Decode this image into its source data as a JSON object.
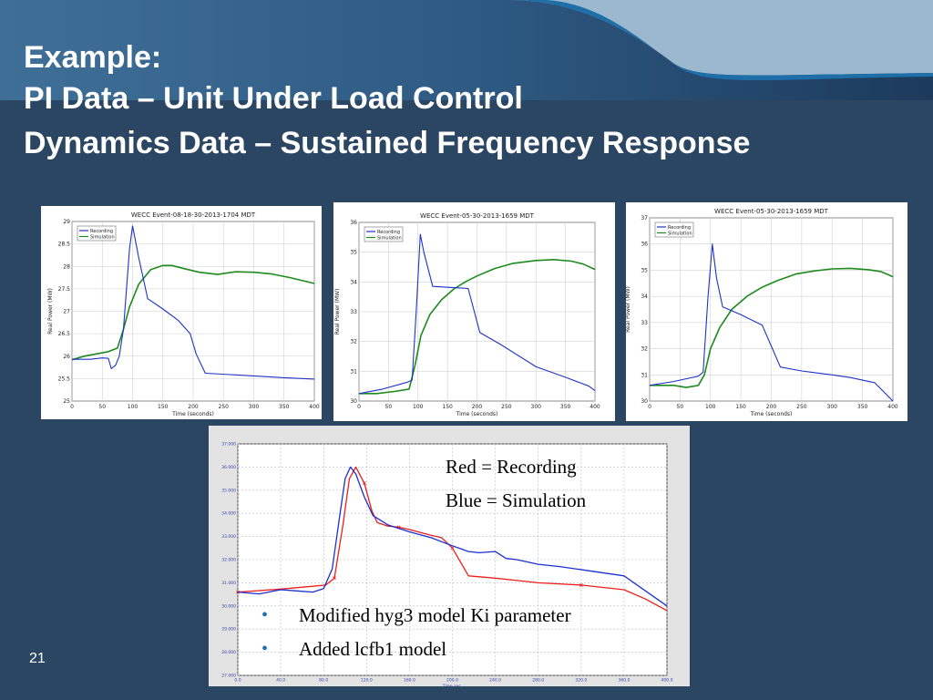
{
  "slide": {
    "title_lines": [
      "Example:",
      "PI Data – Unit Under Load Control",
      "Dynamics Data – Sustained Frequency Response"
    ],
    "page_number": "21",
    "bullets": [
      "Modified hyg3 model Ki parameter",
      "Added lcfb1 model"
    ],
    "comparison_legend": [
      "Red = Recording",
      "Blue = Simulation"
    ],
    "colors": {
      "background": "#2b4663",
      "recording": "#1f31c8",
      "simulation": "#1e8a1e",
      "overlay_recording": "#e8201c",
      "overlay_simulation": "#1c2fd0"
    }
  },
  "chart_data": [
    {
      "type": "line",
      "title": "WECC Event-08-18-30-2013-1704 MDT",
      "xlabel": "Time (seconds)",
      "ylabel": "Real Power (MW)",
      "xlim": [
        0,
        400
      ],
      "ylim": [
        25,
        29
      ],
      "xticks": [
        0,
        50,
        100,
        150,
        200,
        250,
        300,
        350,
        400
      ],
      "yticks": [
        25,
        25.5,
        26,
        26.5,
        27,
        27.5,
        28,
        28.5,
        29
      ],
      "ytick_labels": [
        "25",
        "25.5",
        "26",
        "26.5",
        "27",
        "27.5",
        "28",
        "28.5",
        "29"
      ],
      "grid": true,
      "legend": "top-left",
      "series": [
        {
          "name": "Recording",
          "x": [
            0,
            30,
            50,
            60,
            65,
            72,
            78,
            85,
            95,
            100,
            110,
            125,
            150,
            175,
            195,
            205,
            220,
            300,
            350,
            400
          ],
          "y": [
            25.93,
            25.93,
            25.96,
            25.95,
            25.72,
            25.8,
            26.0,
            26.6,
            28.4,
            28.9,
            28.2,
            27.28,
            27.05,
            26.8,
            26.5,
            26.05,
            25.62,
            25.56,
            25.52,
            25.49
          ]
        },
        {
          "name": "Simulation",
          "x": [
            0,
            20,
            40,
            60,
            75,
            85,
            95,
            110,
            130,
            150,
            165,
            185,
            210,
            240,
            270,
            300,
            330,
            360,
            400
          ],
          "y": [
            25.92,
            26.0,
            26.05,
            26.1,
            26.18,
            26.6,
            27.1,
            27.6,
            27.93,
            28.02,
            28.02,
            27.95,
            27.87,
            27.82,
            27.88,
            27.87,
            27.83,
            27.75,
            27.62
          ]
        }
      ]
    },
    {
      "type": "line",
      "title": "WECC Event-05-30-2013-1659 MDT",
      "xlabel": "Time (seconds)",
      "ylabel": "Real Power (MW)",
      "xlim": [
        0,
        400
      ],
      "ylim": [
        30,
        36
      ],
      "xticks": [
        0,
        50,
        100,
        150,
        200,
        250,
        300,
        350,
        400
      ],
      "yticks": [
        30,
        31,
        32,
        33,
        34,
        35,
        36
      ],
      "ytick_labels": [
        "30",
        "31",
        "32",
        "33",
        "34",
        "35",
        "36"
      ],
      "grid": true,
      "legend": "top-left",
      "series": [
        {
          "name": "Recording",
          "x": [
            0,
            40,
            80,
            90,
            97,
            104,
            110,
            125,
            150,
            185,
            205,
            240,
            300,
            350,
            390,
            400
          ],
          "y": [
            30.25,
            30.4,
            30.62,
            30.7,
            33.0,
            35.6,
            35.0,
            33.85,
            33.82,
            33.78,
            32.3,
            31.9,
            31.15,
            30.8,
            30.5,
            30.35
          ]
        },
        {
          "name": "Simulation",
          "x": [
            0,
            30,
            60,
            85,
            95,
            105,
            120,
            140,
            160,
            180,
            200,
            230,
            260,
            300,
            330,
            360,
            380,
            400
          ],
          "y": [
            30.25,
            30.25,
            30.32,
            30.4,
            31.2,
            32.2,
            32.9,
            33.4,
            33.75,
            34.0,
            34.2,
            34.45,
            34.62,
            34.72,
            34.75,
            34.7,
            34.6,
            34.42
          ]
        }
      ]
    },
    {
      "type": "line",
      "title": "WECC Event-05-30-2013-1659 MDT",
      "xlabel": "Time (seconds)",
      "ylabel": "Real Power (MW)",
      "xlim": [
        0,
        400
      ],
      "ylim": [
        30,
        37
      ],
      "xticks": [
        0,
        50,
        100,
        150,
        200,
        250,
        300,
        350,
        400
      ],
      "yticks": [
        30,
        31,
        32,
        33,
        34,
        35,
        36,
        37
      ],
      "ytick_labels": [
        "30",
        "31",
        "32",
        "33",
        "34",
        "35",
        "36",
        "37"
      ],
      "grid": true,
      "legend": "top-left",
      "series": [
        {
          "name": "Recording",
          "x": [
            0,
            40,
            80,
            88,
            96,
            103,
            110,
            120,
            150,
            185,
            215,
            250,
            300,
            330,
            370,
            400
          ],
          "y": [
            30.6,
            30.75,
            30.95,
            31.1,
            34.0,
            36.0,
            34.7,
            33.6,
            33.3,
            32.9,
            31.3,
            31.15,
            31.0,
            30.9,
            30.7,
            30.0
          ]
        },
        {
          "name": "Simulation",
          "x": [
            0,
            40,
            60,
            80,
            90,
            100,
            115,
            135,
            160,
            185,
            210,
            240,
            270,
            300,
            330,
            360,
            380,
            400
          ],
          "y": [
            30.6,
            30.6,
            30.52,
            30.6,
            31.0,
            32.0,
            32.8,
            33.5,
            34.0,
            34.35,
            34.6,
            34.85,
            34.97,
            35.05,
            35.07,
            35.02,
            34.95,
            34.75
          ]
        }
      ]
    },
    {
      "type": "line",
      "title": "",
      "xlabel": "Time sec.",
      "ylabel": "",
      "xlim": [
        0,
        400
      ],
      "ylim": [
        27,
        37
      ],
      "xticks": [
        0,
        40,
        80,
        120,
        160,
        200,
        240,
        280,
        320,
        360,
        400
      ],
      "xtick_labels": [
        "0.0",
        "40.0",
        "80.0",
        "120.0",
        "160.0",
        "200.0",
        "240.0",
        "280.0",
        "320.0",
        "360.0",
        "400.0"
      ],
      "yticks": [
        27,
        28,
        29,
        30,
        31,
        32,
        33,
        34,
        35,
        36,
        37
      ],
      "ytick_labels": [
        "27.000",
        "28.000",
        "29.000",
        "30.000",
        "31.000",
        "32.000",
        "33.000",
        "34.000",
        "35.000",
        "36.000",
        "37.000"
      ],
      "grid": true,
      "legend": "none",
      "series": [
        {
          "name": "Recording",
          "x": [
            0,
            40,
            70,
            82,
            90,
            98,
            104,
            110,
            118,
            125,
            130,
            140,
            150,
            160,
            180,
            190,
            200,
            215,
            240,
            280,
            320,
            360,
            380,
            400
          ],
          "y": [
            30.6,
            30.73,
            30.85,
            30.9,
            31.2,
            33.5,
            35.5,
            36.0,
            35.3,
            34.1,
            33.6,
            33.45,
            33.4,
            33.3,
            33.05,
            32.95,
            32.5,
            31.3,
            31.2,
            31.0,
            30.9,
            30.7,
            30.3,
            29.8
          ]
        },
        {
          "name": "Simulation",
          "x": [
            0,
            20,
            40,
            55,
            70,
            80,
            88,
            95,
            100,
            105,
            110,
            118,
            126,
            140,
            160,
            180,
            200,
            215,
            225,
            240,
            250,
            260,
            280,
            300,
            330,
            360,
            400
          ],
          "y": [
            30.6,
            30.52,
            30.7,
            30.65,
            30.6,
            30.75,
            31.6,
            33.9,
            35.5,
            36.0,
            35.7,
            34.7,
            33.9,
            33.5,
            33.2,
            32.95,
            32.6,
            32.35,
            32.3,
            32.35,
            32.05,
            32.0,
            31.8,
            31.7,
            31.5,
            31.3,
            30.0
          ]
        }
      ]
    }
  ]
}
